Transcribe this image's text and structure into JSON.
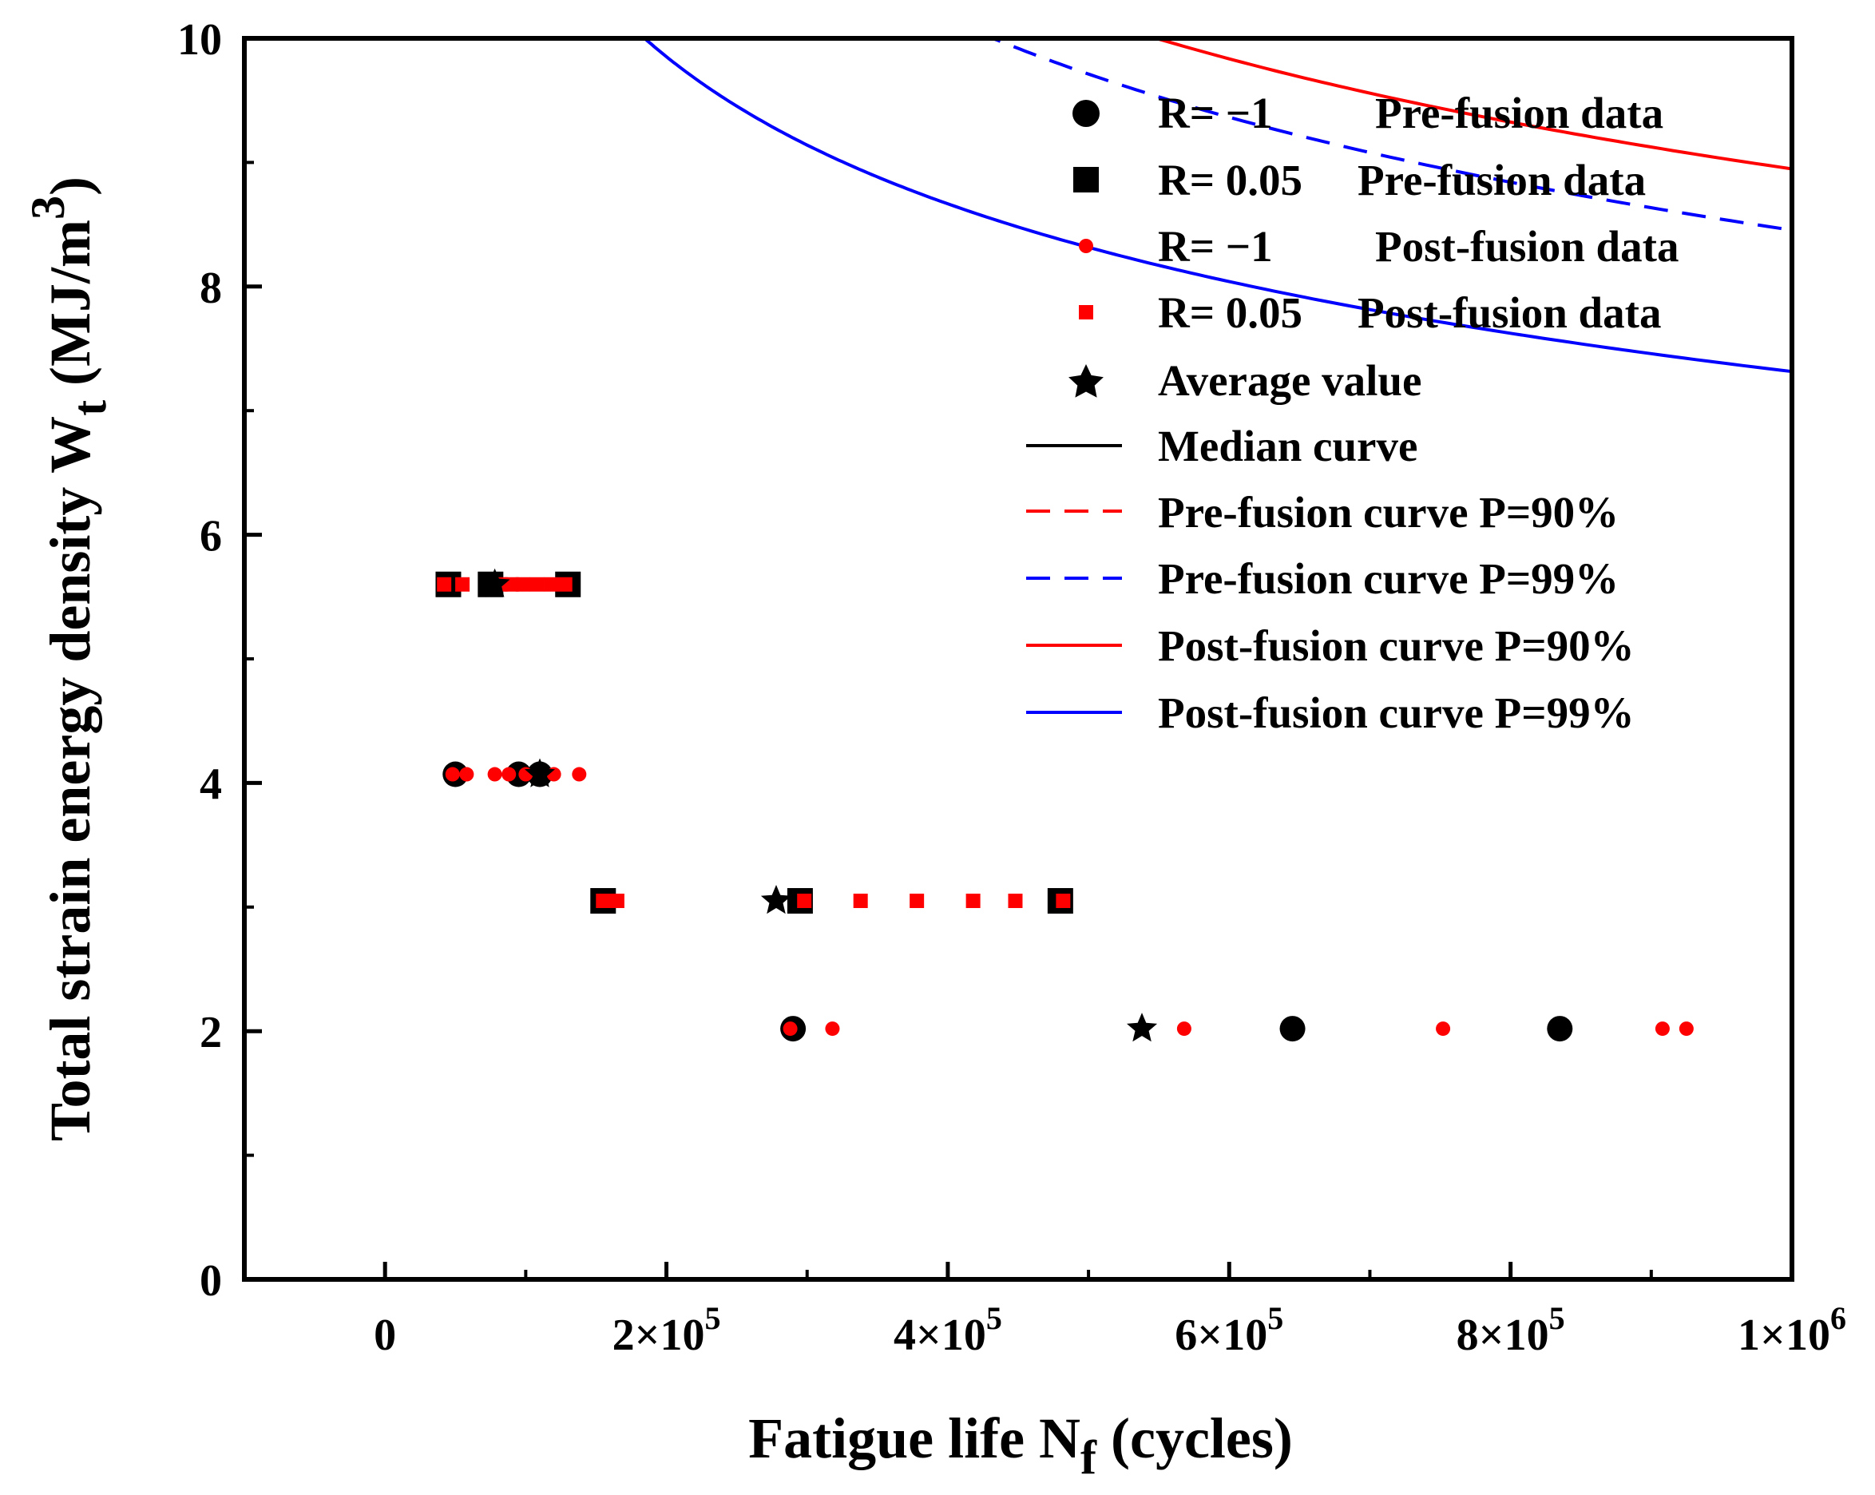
{
  "chart_data": {
    "type": "scatter",
    "title": "",
    "xlabel": {
      "main": "Fatigue life N",
      "sub": "f",
      "tail": " (cycles)"
    },
    "ylabel": {
      "main": "Total strain energy density  W",
      "sub": "t",
      "unit_open": " (MJ/m",
      "sup": "3",
      "unit_close": ")"
    },
    "xlim": [
      -100000,
      1000000
    ],
    "ylim": [
      0,
      10
    ],
    "grid": false,
    "legend_position": "top-right",
    "x_ticks": [
      {
        "value": 0,
        "label": "0"
      },
      {
        "value": 200000,
        "base": "2×10",
        "exp": "5"
      },
      {
        "value": 400000,
        "base": "4×10",
        "exp": "5"
      },
      {
        "value": 600000,
        "base": "6×10",
        "exp": "5"
      },
      {
        "value": 800000,
        "base": "8×10",
        "exp": "5"
      },
      {
        "value": 1000000,
        "base": "1×10",
        "exp": "6"
      }
    ],
    "y_ticks": [
      {
        "value": 0,
        "label": "0"
      },
      {
        "value": 2,
        "label": "2"
      },
      {
        "value": 4,
        "label": "4"
      },
      {
        "value": 6,
        "label": "6"
      },
      {
        "value": 8,
        "label": "8"
      },
      {
        "value": 10,
        "label": "10"
      }
    ],
    "scatter_series": [
      {
        "name": "R=  −1     Pre-fusion data",
        "legend_r": "R=  −1",
        "legend_label": "Pre-fusion data",
        "marker": "circle-large",
        "color": "#000000",
        "points": [
          [
            50000,
            4.07
          ],
          [
            95000,
            4.07
          ],
          [
            110000,
            4.07
          ],
          [
            290000,
            2.02
          ],
          [
            645000,
            2.02
          ],
          [
            835000,
            2.02
          ]
        ]
      },
      {
        "name": "R= 0.05  Pre-fusion data",
        "legend_r": "R= 0.05",
        "legend_label": "Pre-fusion data",
        "marker": "square-large",
        "color": "#000000",
        "points": [
          [
            45000,
            5.6
          ],
          [
            75000,
            5.6
          ],
          [
            130000,
            5.6
          ],
          [
            155000,
            3.05
          ],
          [
            295000,
            3.05
          ],
          [
            480000,
            3.05
          ]
        ]
      },
      {
        "name": "R=  −1     Post-fusion data",
        "legend_r": "R=  −1",
        "legend_label": "Post-fusion data",
        "marker": "circle-small",
        "color": "#ff0000",
        "points": [
          [
            48000,
            4.07
          ],
          [
            58000,
            4.07
          ],
          [
            78000,
            4.07
          ],
          [
            88000,
            4.07
          ],
          [
            100000,
            4.07
          ],
          [
            120000,
            4.07
          ],
          [
            138000,
            4.07
          ],
          [
            288000,
            2.02
          ],
          [
            318000,
            2.02
          ],
          [
            568000,
            2.02
          ],
          [
            752000,
            2.02
          ],
          [
            908000,
            2.02
          ],
          [
            925000,
            2.02
          ]
        ]
      },
      {
        "name": "R= 0.05  Post-fusion data",
        "legend_r": "R= 0.05",
        "legend_label": "Post-fusion data",
        "marker": "square-small",
        "color": "#ff0000",
        "points": [
          [
            42000,
            5.6
          ],
          [
            55000,
            5.6
          ],
          [
            82000,
            5.6
          ],
          [
            90000,
            5.6
          ],
          [
            98000,
            5.6
          ],
          [
            108000,
            5.6
          ],
          [
            118000,
            5.6
          ],
          [
            128000,
            5.6
          ],
          [
            155000,
            3.05
          ],
          [
            165000,
            3.05
          ],
          [
            298000,
            3.05
          ],
          [
            338000,
            3.05
          ],
          [
            378000,
            3.05
          ],
          [
            418000,
            3.05
          ],
          [
            448000,
            3.05
          ],
          [
            482000,
            3.05
          ]
        ]
      },
      {
        "name": "Average value",
        "legend_r": "",
        "legend_label": "Average value",
        "marker": "star",
        "color": "#000000",
        "points": [
          [
            78000,
            5.6
          ],
          [
            110000,
            4.07
          ],
          [
            278000,
            3.05
          ],
          [
            538000,
            2.02
          ]
        ]
      }
    ],
    "curves": [
      {
        "name": "Median curve",
        "color": "#000000",
        "dash": "solid",
        "a": 17.8,
        "b": 0.175,
        "x_start": 22000
      },
      {
        "name": "Pre-fusion curve P=90%",
        "color": "#ff0000",
        "dash": "dashed",
        "a": 16.0,
        "b": 0.2,
        "x_start": 12000
      },
      {
        "name": "Pre-fusion curve P=99%",
        "color": "#0000ff",
        "dash": "dashed",
        "a": 13.4,
        "b": 0.2,
        "x_start": 12000
      },
      {
        "name": "Post-fusion curve P=90%",
        "color": "#ff0000",
        "dash": "solid",
        "a": 13.7,
        "b": 0.185,
        "x_start": 12000
      },
      {
        "name": "Post-fusion curve P=99%",
        "color": "#0000ff",
        "dash": "solid",
        "a": 11.2,
        "b": 0.185,
        "x_start": 12000
      }
    ]
  }
}
